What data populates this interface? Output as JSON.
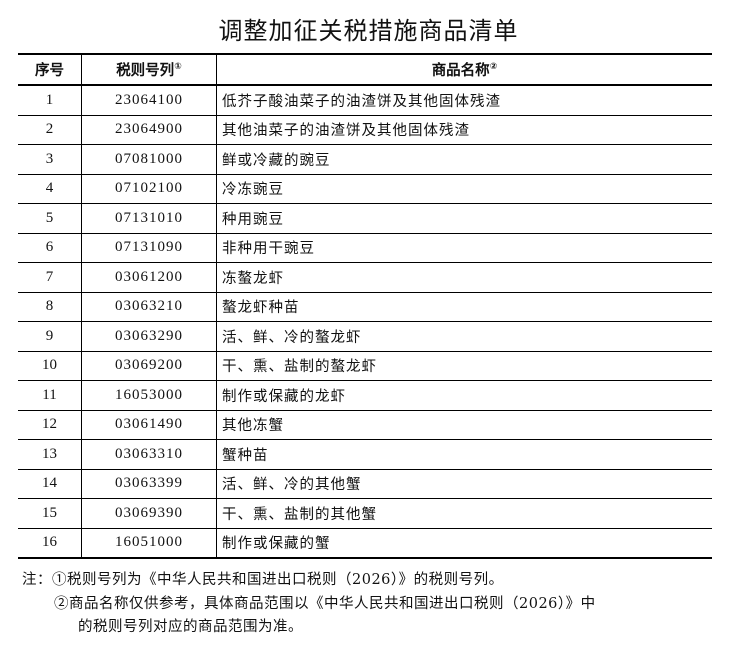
{
  "title": "调整加征关税措施商品清单",
  "table": {
    "headers": {
      "seq": "序号",
      "code": "税则号列",
      "code_note": "①",
      "name": "商品名称",
      "name_note": "②"
    },
    "rows": [
      {
        "seq": "1",
        "code": "23064100",
        "name": "低芥子酸油菜子的油渣饼及其他固体残渣"
      },
      {
        "seq": "2",
        "code": "23064900",
        "name": "其他油菜子的油渣饼及其他固体残渣"
      },
      {
        "seq": "3",
        "code": "07081000",
        "name": "鲜或冷藏的豌豆"
      },
      {
        "seq": "4",
        "code": "07102100",
        "name": "冷冻豌豆"
      },
      {
        "seq": "5",
        "code": "07131010",
        "name": "种用豌豆"
      },
      {
        "seq": "6",
        "code": "07131090",
        "name": "非种用干豌豆"
      },
      {
        "seq": "7",
        "code": "03061200",
        "name": "冻螯龙虾"
      },
      {
        "seq": "8",
        "code": "03063210",
        "name": "螯龙虾种苗"
      },
      {
        "seq": "9",
        "code": "03063290",
        "name": "活、鲜、冷的螯龙虾"
      },
      {
        "seq": "10",
        "code": "03069200",
        "name": "干、熏、盐制的螯龙虾"
      },
      {
        "seq": "11",
        "code": "16053000",
        "name": "制作或保藏的龙虾"
      },
      {
        "seq": "12",
        "code": "03061490",
        "name": "其他冻蟹"
      },
      {
        "seq": "13",
        "code": "03063310",
        "name": "蟹种苗"
      },
      {
        "seq": "14",
        "code": "03063399",
        "name": "活、鲜、冷的其他蟹"
      },
      {
        "seq": "15",
        "code": "03069390",
        "name": "干、熏、盐制的其他蟹"
      },
      {
        "seq": "16",
        "code": "16051000",
        "name": "制作或保藏的蟹"
      }
    ]
  },
  "notes": {
    "line1": "注：①税则号列为《中华人民共和国进出口税则（2026）》的税则号列。",
    "line2": "②商品名称仅供参考，具体商品范围以《中华人民共和国进出口税则（2026）》中",
    "line3": "的税则号列对应的商品范围为准。"
  }
}
